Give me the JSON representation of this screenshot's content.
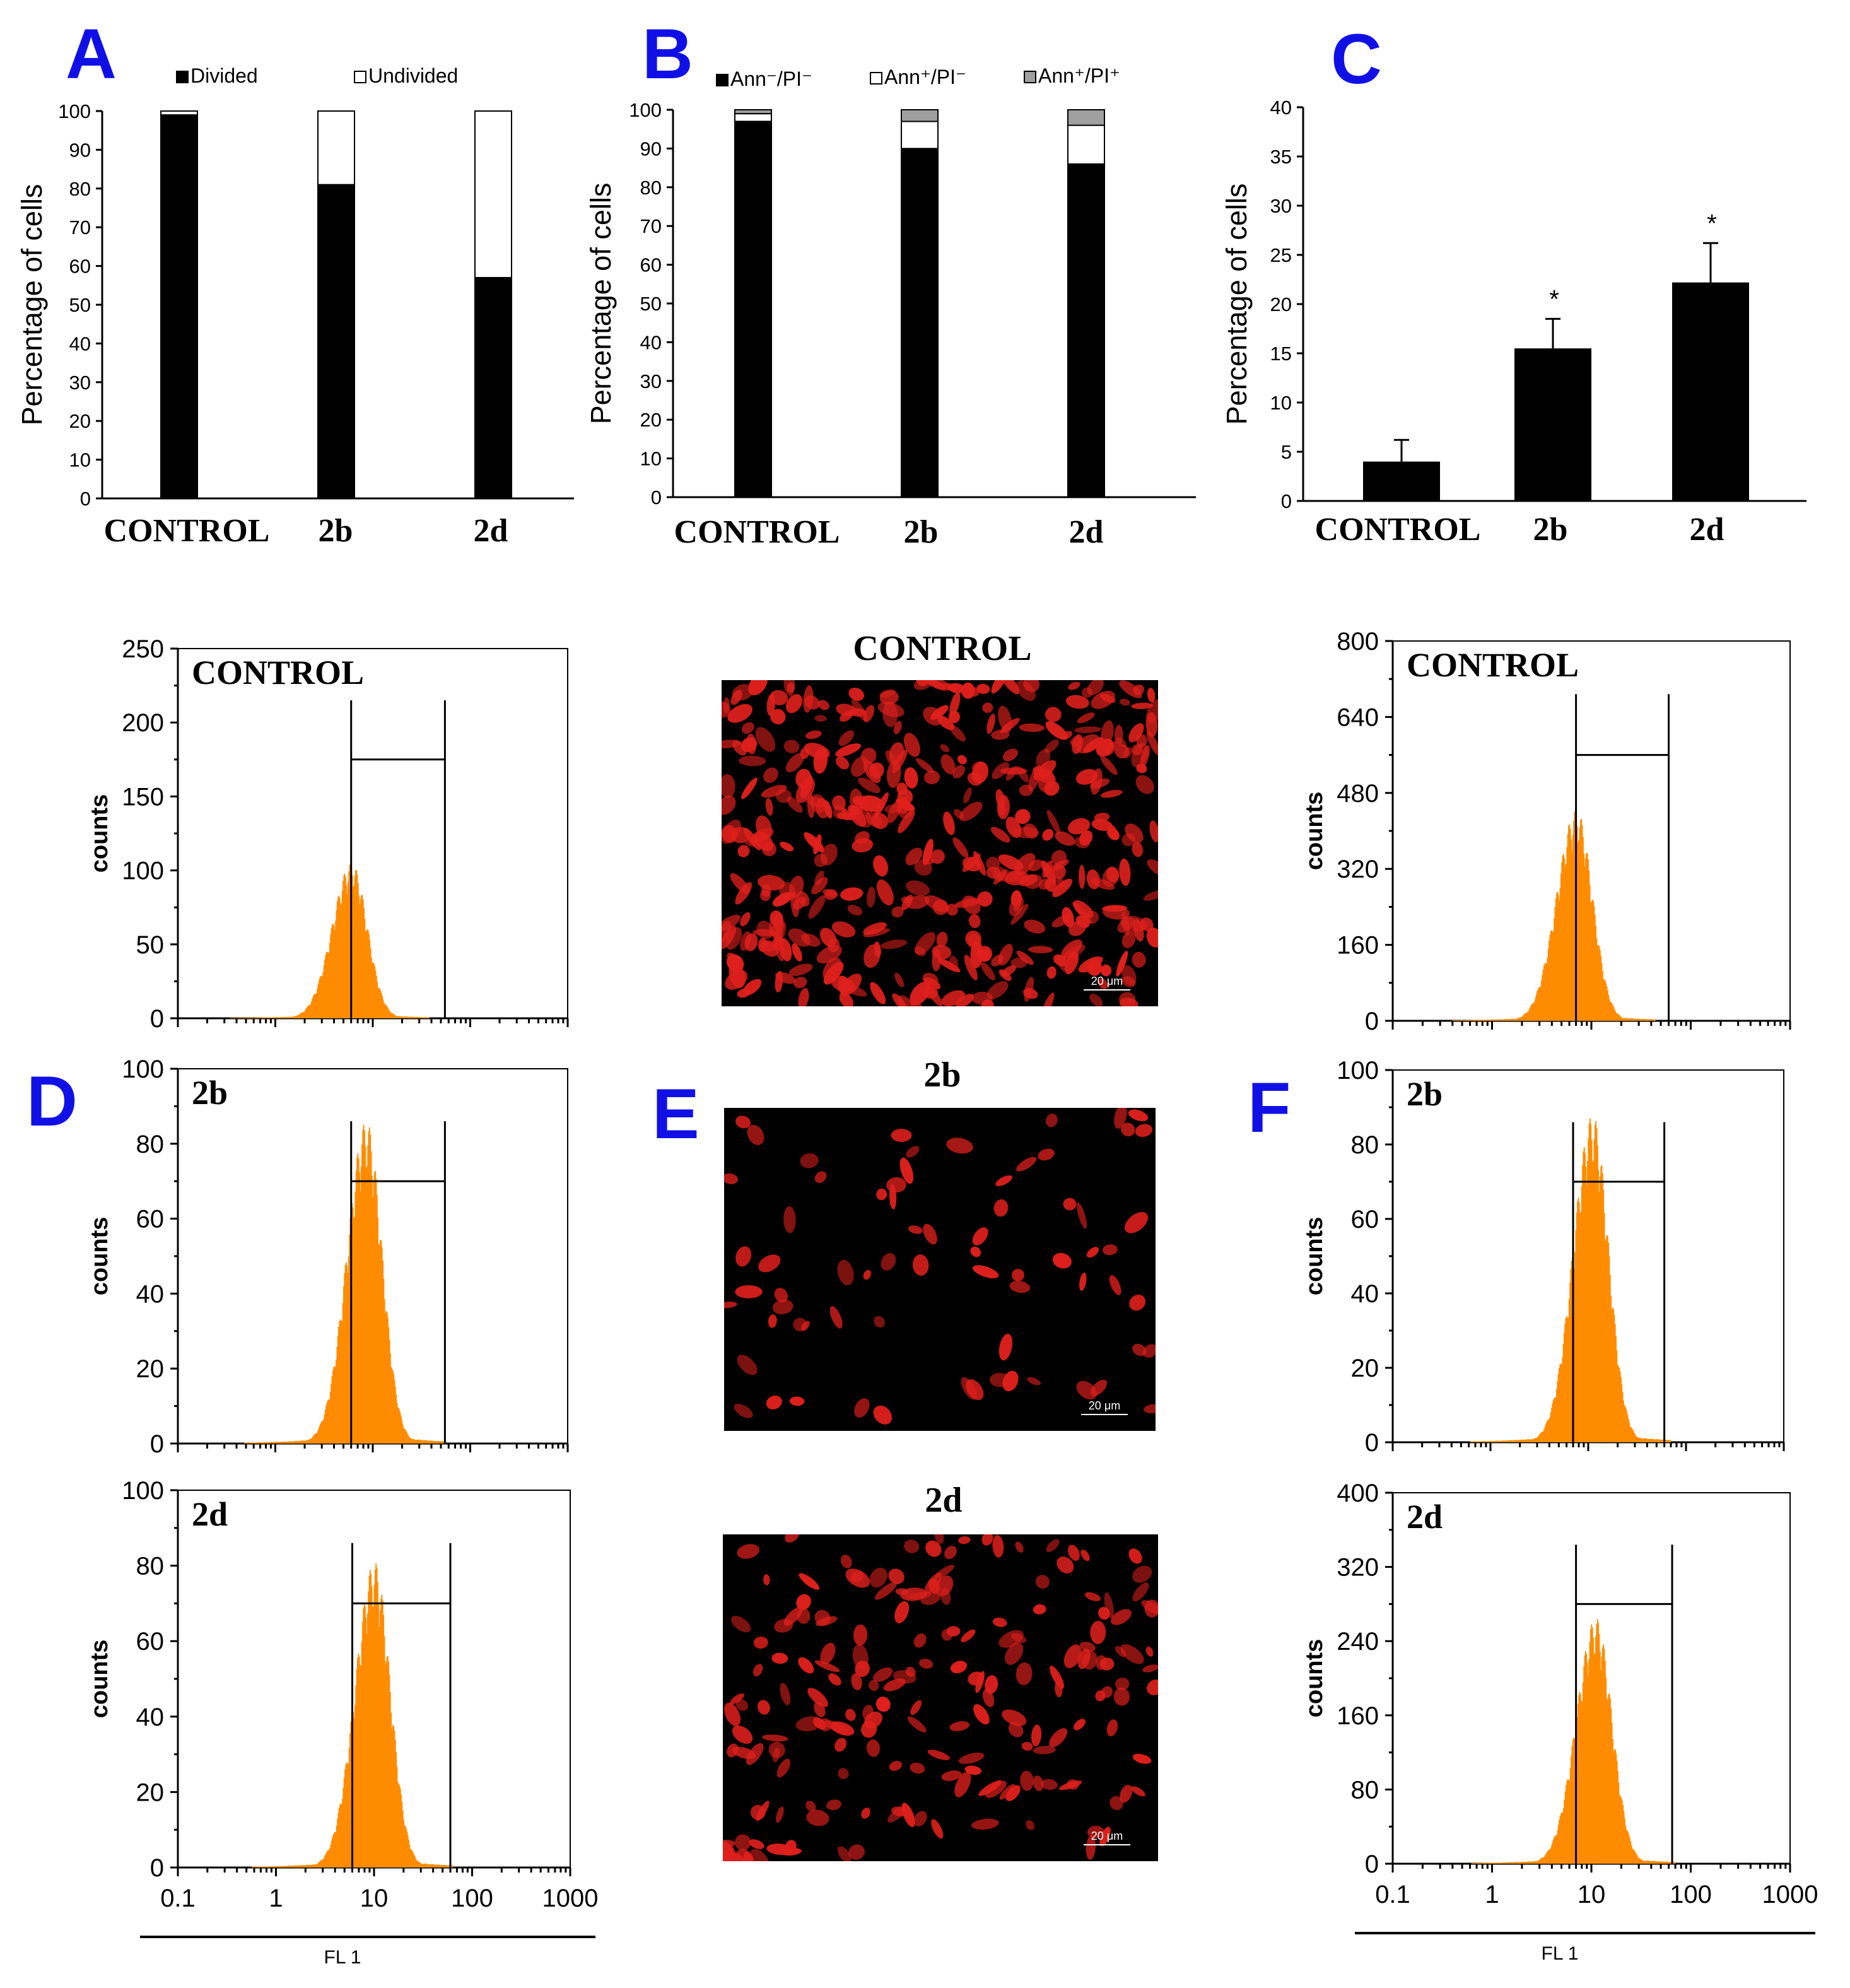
{
  "panels": {
    "A": "A",
    "B": "B",
    "C": "C",
    "D": "D",
    "E": "E",
    "F": "F"
  },
  "chart_data": [
    {
      "id": "A",
      "type": "bar",
      "stacked": true,
      "categories": [
        "CONTROL",
        "2b",
        "2d"
      ],
      "series": [
        {
          "name": "Divided",
          "values": [
            99,
            81,
            57
          ]
        },
        {
          "name": "Undivided",
          "values": [
            1,
            19,
            43
          ]
        }
      ],
      "ylabel": "Percentage of cells",
      "ylim": [
        0,
        100
      ],
      "yticks": [
        0,
        10,
        20,
        30,
        40,
        50,
        60,
        70,
        80,
        90,
        100
      ],
      "legend": "top",
      "colors": {
        "Divided": "#000000",
        "Undivided": "#ffffff"
      }
    },
    {
      "id": "B",
      "type": "bar",
      "stacked": true,
      "categories": [
        "CONTROL",
        "2b",
        "2d"
      ],
      "series": [
        {
          "name": "Ann⁻/PI⁻",
          "values": [
            97,
            90,
            86
          ]
        },
        {
          "name": "Ann⁺/PI⁻",
          "values": [
            2,
            7,
            10
          ]
        },
        {
          "name": "Ann⁺/PI⁺",
          "values": [
            1,
            3,
            4
          ]
        }
      ],
      "ylabel": "Percentage of cells",
      "ylim": [
        0,
        100
      ],
      "yticks": [
        0,
        10,
        20,
        30,
        40,
        50,
        60,
        70,
        80,
        90,
        100
      ],
      "legend": "top",
      "colors": {
        "Ann⁻/PI⁻": "#000000",
        "Ann⁺/PI⁻": "#ffffff",
        "Ann⁺/PI⁺": "#a0a0a0"
      }
    },
    {
      "id": "C",
      "type": "bar",
      "categories": [
        "CONTROL",
        "2b",
        "2d"
      ],
      "values": [
        4,
        15.5,
        22.2
      ],
      "errors": [
        2.2,
        3,
        4
      ],
      "significance": [
        "",
        "*",
        "*"
      ],
      "ylabel": "Percentage of cells",
      "ylim": [
        0,
        40
      ],
      "yticks": [
        0,
        5,
        10,
        15,
        20,
        25,
        30,
        35,
        40
      ]
    },
    {
      "id": "D",
      "type": "histogram",
      "xscale": "log",
      "xlim": [
        0.1,
        1000
      ],
      "xticks": [
        "0.1",
        "1",
        "10",
        "100",
        "1000"
      ],
      "xlabel": "FL 1",
      "ylabel": "counts",
      "subplots": [
        {
          "title": "CONTROL",
          "ylim": [
            0,
            250
          ],
          "yticks": [
            0,
            50,
            100,
            150,
            200,
            250
          ],
          "peak_x": 6,
          "peak_y": 105,
          "gate": [
            6,
            55
          ],
          "gate_y": 175
        },
        {
          "title": "2b",
          "ylim": [
            0,
            100
          ],
          "yticks": [
            0,
            20,
            40,
            60,
            80,
            100
          ],
          "peak_x": 8.5,
          "peak_y": 86,
          "gate": [
            6,
            55
          ],
          "gate_y": 70
        },
        {
          "title": "2d",
          "ylim": [
            0,
            100
          ],
          "yticks": [
            0,
            20,
            40,
            60,
            80,
            100
          ],
          "peak_x": 10,
          "peak_y": 81,
          "gate": [
            6,
            60
          ],
          "gate_y": 70
        }
      ]
    },
    {
      "id": "F",
      "type": "histogram",
      "xscale": "log",
      "xlim": [
        0.1,
        1000
      ],
      "xticks": [
        "0.1",
        "1",
        "10",
        "100",
        "1000"
      ],
      "xlabel": "FL 1",
      "ylabel": "counts",
      "subplots": [
        {
          "title": "CONTROL",
          "ylim": [
            0,
            800
          ],
          "yticks": [
            0,
            160,
            320,
            480,
            640,
            800
          ],
          "peak_x": 7,
          "peak_y": 445,
          "gate": [
            7,
            60
          ],
          "gate_y": 560
        },
        {
          "title": "2b",
          "ylim": [
            0,
            100
          ],
          "yticks": [
            0,
            20,
            40,
            60,
            80,
            100
          ],
          "peak_x": 11,
          "peak_y": 88,
          "gate": [
            7,
            60
          ],
          "gate_y": 70
        },
        {
          "title": "2d",
          "ylim": [
            0,
            400
          ],
          "yticks": [
            0,
            80,
            160,
            240,
            320,
            400
          ],
          "peak_x": 11,
          "peak_y": 265,
          "gate": [
            7,
            65
          ],
          "gate_y": 280
        }
      ]
    }
  ],
  "micrographs": [
    {
      "title": "CONTROL",
      "scale": "20 μm",
      "density": "high"
    },
    {
      "title": "2b",
      "scale": "20 μm",
      "density": "low"
    },
    {
      "title": "2d",
      "scale": "20 μm",
      "density": "medium"
    }
  ],
  "colors": {
    "panel_letter": "#1010e6",
    "histogram_fill": "#ff8c00",
    "micro_cell": "#e0201c"
  }
}
